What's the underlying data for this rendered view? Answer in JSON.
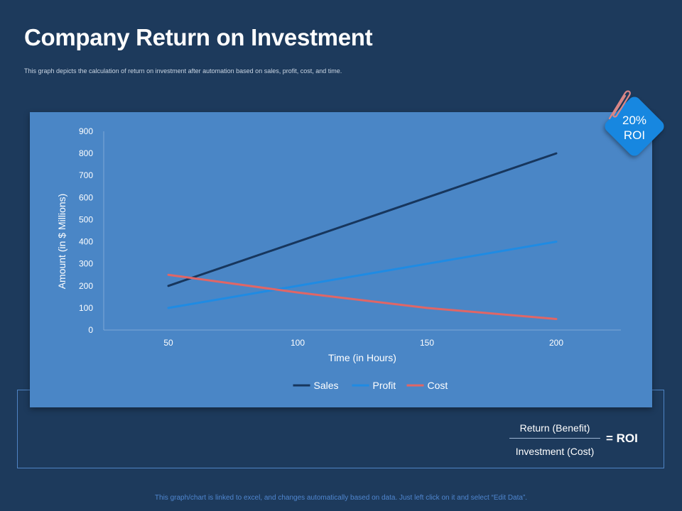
{
  "slide": {
    "title": "Company Return on Investment",
    "subtitle": "This graph depicts the calculation of return on investment after automation based on sales, profit, cost, and time.",
    "footer": "This graph/chart is linked to excel,  and changes automatically based on data. Just left click on it and select “Edit Data”."
  },
  "badge": {
    "value": "20%",
    "label": "ROI"
  },
  "formula": {
    "numerator": "Return (Benefit)",
    "denominator": "Investment (Cost)",
    "result": "= ROI"
  },
  "chart_data": {
    "type": "line",
    "x": [
      50,
      100,
      150,
      200
    ],
    "x_tick_labels": [
      "50",
      "100",
      "150",
      "200"
    ],
    "xlabel": "Time (in Hours)",
    "ylabel": "Amount (in $ Millions)",
    "ylim": [
      0,
      900
    ],
    "y_ticks": [
      0,
      100,
      200,
      300,
      400,
      500,
      600,
      700,
      800,
      900
    ],
    "grid": false,
    "legend_position": "bottom",
    "series": [
      {
        "name": "Sales",
        "color": "#17365d",
        "values": [
          200,
          400,
          600,
          800
        ]
      },
      {
        "name": "Profit",
        "color": "#1f8be3",
        "values": [
          100,
          200,
          300,
          400
        ]
      },
      {
        "name": "Cost",
        "color": "#e06666",
        "values": [
          250,
          170,
          100,
          50
        ]
      }
    ]
  }
}
